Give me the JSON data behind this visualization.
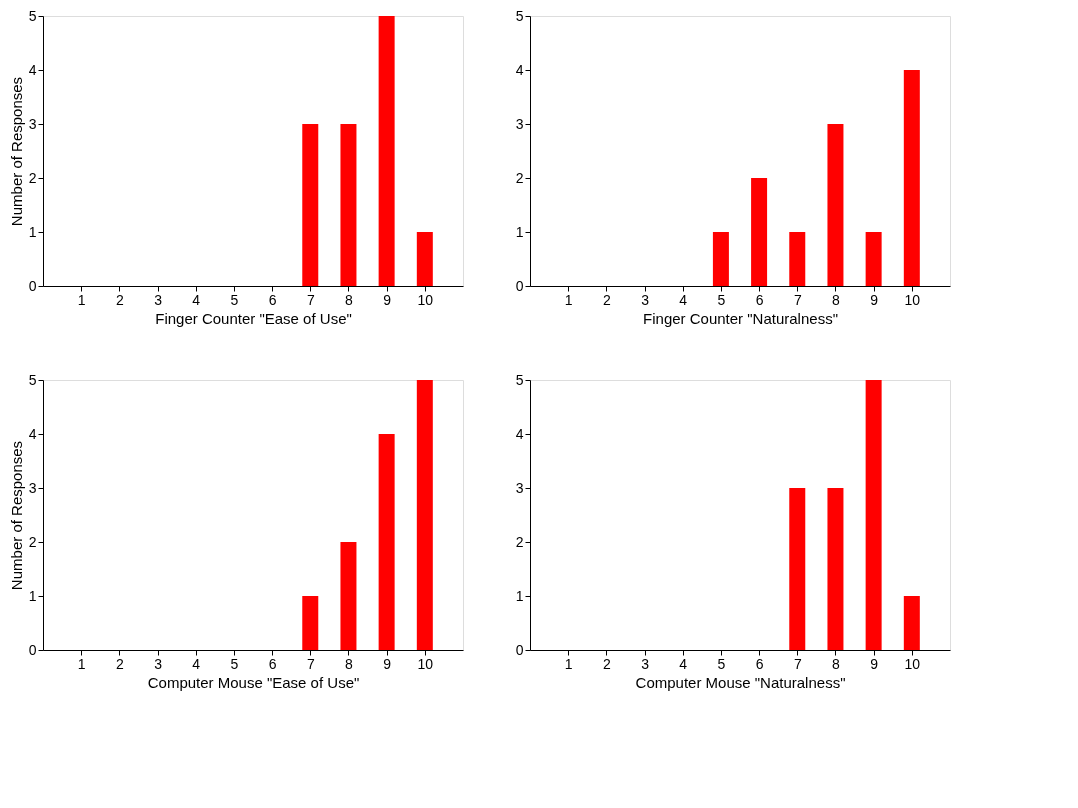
{
  "chart_data": [
    {
      "type": "bar",
      "xlabel": "Finger Counter \"Ease of Use\"",
      "ylabel": "Number of Responses",
      "x": [
        1,
        2,
        3,
        4,
        5,
        6,
        7,
        8,
        9,
        10
      ],
      "values": [
        0,
        0,
        0,
        0,
        0,
        0,
        3,
        3,
        5,
        1
      ],
      "color": "#ff0000",
      "xlim": [
        0,
        11
      ],
      "xticks": [
        1,
        2,
        3,
        4,
        5,
        6,
        7,
        8,
        9,
        10
      ],
      "ylim": [
        0,
        5
      ],
      "yticks": [
        0,
        1,
        2,
        3,
        4,
        5
      ],
      "grid": false
    },
    {
      "type": "bar",
      "xlabel": "Finger Counter \"Naturalness\"",
      "x": [
        1,
        2,
        3,
        4,
        5,
        6,
        7,
        8,
        9,
        10
      ],
      "values": [
        0,
        0,
        0,
        0,
        1,
        2,
        1,
        3,
        1,
        4
      ],
      "color": "#ff0000",
      "xlim": [
        0,
        11
      ],
      "xticks": [
        1,
        2,
        3,
        4,
        5,
        6,
        7,
        8,
        9,
        10
      ],
      "ylim": [
        0,
        5
      ],
      "yticks": [
        0,
        1,
        2,
        3,
        4,
        5
      ],
      "grid": false
    },
    {
      "type": "bar",
      "xlabel": "Computer Mouse \"Ease of Use\"",
      "ylabel": "Number of Responses",
      "x": [
        1,
        2,
        3,
        4,
        5,
        6,
        7,
        8,
        9,
        10
      ],
      "values": [
        0,
        0,
        0,
        0,
        0,
        0,
        1,
        2,
        4,
        5
      ],
      "color": "#ff0000",
      "xlim": [
        0,
        11
      ],
      "xticks": [
        1,
        2,
        3,
        4,
        5,
        6,
        7,
        8,
        9,
        10
      ],
      "ylim": [
        0,
        5
      ],
      "yticks": [
        0,
        1,
        2,
        3,
        4,
        5
      ],
      "grid": false
    },
    {
      "type": "bar",
      "xlabel": "Computer Mouse \"Naturalness\"",
      "x": [
        1,
        2,
        3,
        4,
        5,
        6,
        7,
        8,
        9,
        10
      ],
      "values": [
        0,
        0,
        0,
        0,
        0,
        0,
        3,
        3,
        5,
        1
      ],
      "color": "#ff0000",
      "xlim": [
        0,
        11
      ],
      "xticks": [
        1,
        2,
        3,
        4,
        5,
        6,
        7,
        8,
        9,
        10
      ],
      "ylim": [
        0,
        5
      ],
      "yticks": [
        0,
        1,
        2,
        3,
        4,
        5
      ],
      "grid": false
    }
  ]
}
